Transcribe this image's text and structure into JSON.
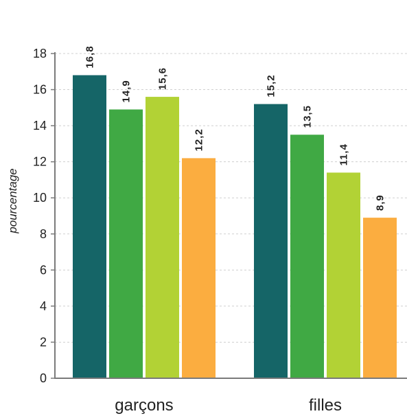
{
  "chart_data": {
    "type": "bar",
    "title": "",
    "xlabel": "",
    "ylabel": "pourcentage",
    "ylim": [
      0,
      18
    ],
    "yticks": [
      0,
      2,
      4,
      6,
      8,
      10,
      12,
      14,
      16,
      18
    ],
    "grid": true,
    "categories": [
      "garçons",
      "filles"
    ],
    "series": [
      {
        "color": "#156567",
        "values": [
          16.8,
          15.2
        ],
        "labels": [
          "16,8",
          "15,2"
        ]
      },
      {
        "color": "#40a944",
        "values": [
          14.9,
          13.5
        ],
        "labels": [
          "14,9",
          "13,5"
        ]
      },
      {
        "color": "#b2d235",
        "values": [
          15.6,
          11.4
        ],
        "labels": [
          "15,6",
          "11,4"
        ]
      },
      {
        "color": "#fbad40",
        "values": [
          12.2,
          8.9
        ],
        "labels": [
          "12,2",
          "8,9"
        ]
      }
    ]
  }
}
